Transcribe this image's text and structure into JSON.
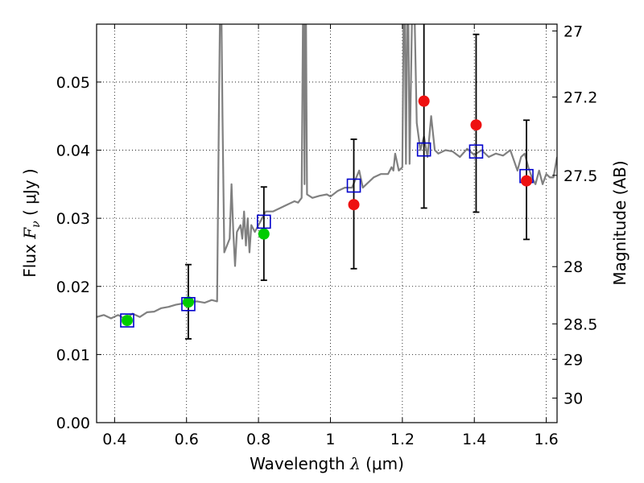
{
  "chart_data": {
    "type": "scatter",
    "title": "",
    "xlabel": {
      "prefix": "Wavelength  ",
      "symbol": "λ",
      "unit": " (μm)"
    },
    "ylabel": {
      "prefix": "Flux  ",
      "symbol": "F",
      "subscript": "ν",
      "unit": "  ( μJy )"
    },
    "y2label": "Magnitude (AB)",
    "xlim": [
      0.35,
      1.63
    ],
    "ylim": [
      0.0,
      0.0585
    ],
    "x_ticks": [
      0.4,
      0.6,
      0.8,
      1.0,
      1.2,
      1.4,
      1.6
    ],
    "x_tick_labels": [
      "0.4",
      "0.6",
      "0.8",
      "1",
      "1.2",
      "1.4",
      "1.6"
    ],
    "y_ticks": [
      0.0,
      0.01,
      0.02,
      0.03,
      0.04,
      0.05
    ],
    "y_tick_labels": [
      "0.00",
      "0.01",
      "0.02",
      "0.03",
      "0.04",
      "0.05"
    ],
    "y2_ticks": [
      {
        "flux": 0.0575,
        "label": "27"
      },
      {
        "flux": 0.0478,
        "label": "27.2"
      },
      {
        "flux": 0.0363,
        "label": "27.5"
      },
      {
        "flux": 0.0229,
        "label": "28"
      },
      {
        "flux": 0.0145,
        "label": "28.5"
      },
      {
        "flux": 0.0093,
        "label": "29"
      },
      {
        "flux": 0.0036,
        "label": "30"
      }
    ],
    "grid": true,
    "colors": {
      "spectrum": "#808080",
      "model_squares": "#0000cc",
      "green_points": "#00cc00",
      "red_points": "#ee1111",
      "errorbars": "#000000"
    },
    "series": [
      {
        "kind": "line",
        "x": [
          0.35,
          0.37,
          0.39,
          0.41,
          0.43,
          0.45,
          0.47,
          0.49,
          0.51,
          0.53,
          0.55,
          0.57,
          0.59,
          0.61,
          0.63,
          0.65,
          0.67,
          0.685,
          0.69,
          0.695,
          0.7,
          0.705,
          0.72,
          0.725,
          0.73,
          0.735,
          0.74,
          0.75,
          0.755,
          0.76,
          0.765,
          0.77,
          0.775,
          0.78,
          0.79,
          0.8,
          0.81,
          0.82,
          0.84,
          0.86,
          0.88,
          0.9,
          0.91,
          0.92,
          0.925,
          0.928,
          0.931,
          0.935,
          0.95,
          0.97,
          0.99,
          1.0,
          1.02,
          1.04,
          1.06,
          1.08,
          1.09,
          1.1,
          1.12,
          1.14,
          1.16,
          1.17,
          1.175,
          1.18,
          1.19,
          1.2,
          1.205,
          1.21,
          1.215,
          1.22,
          1.23,
          1.24,
          1.25,
          1.26,
          1.27,
          1.28,
          1.29,
          1.3,
          1.32,
          1.34,
          1.36,
          1.38,
          1.4,
          1.42,
          1.44,
          1.46,
          1.48,
          1.5,
          1.51,
          1.52,
          1.53,
          1.54,
          1.55,
          1.56,
          1.57,
          1.58,
          1.59,
          1.6,
          1.61,
          1.62,
          1.63
        ],
        "y": [
          0.0155,
          0.0158,
          0.0153,
          0.0158,
          0.0152,
          0.016,
          0.0155,
          0.0162,
          0.0163,
          0.0168,
          0.017,
          0.0173,
          0.0175,
          0.0177,
          0.0178,
          0.0176,
          0.018,
          0.0178,
          0.045,
          0.07,
          0.045,
          0.025,
          0.027,
          0.035,
          0.028,
          0.023,
          0.028,
          0.029,
          0.027,
          0.031,
          0.026,
          0.03,
          0.025,
          0.029,
          0.028,
          0.029,
          0.03,
          0.031,
          0.031,
          0.0315,
          0.032,
          0.0325,
          0.0323,
          0.033,
          0.07,
          0.035,
          0.07,
          0.0335,
          0.033,
          0.0333,
          0.0335,
          0.0332,
          0.034,
          0.0345,
          0.0345,
          0.037,
          0.0345,
          0.035,
          0.036,
          0.0365,
          0.0365,
          0.0375,
          0.037,
          0.0395,
          0.037,
          0.0375,
          0.07,
          0.038,
          0.07,
          0.038,
          0.07,
          0.044,
          0.04,
          0.042,
          0.039,
          0.045,
          0.04,
          0.0395,
          0.04,
          0.0398,
          0.039,
          0.0402,
          0.0393,
          0.04,
          0.039,
          0.0395,
          0.0392,
          0.04,
          0.0385,
          0.037,
          0.039,
          0.0395,
          0.0375,
          0.036,
          0.035,
          0.037,
          0.035,
          0.0365,
          0.036,
          0.036,
          0.039
        ]
      },
      {
        "kind": "errorbars",
        "points": [
          {
            "x": 0.605,
            "lo": 0.0123,
            "hi": 0.0232
          },
          {
            "x": 0.815,
            "lo": 0.0209,
            "hi": 0.0346
          },
          {
            "x": 1.065,
            "lo": 0.0226,
            "hi": 0.0416
          },
          {
            "x": 1.26,
            "lo": 0.0315,
            "hi": 0.059
          },
          {
            "x": 1.405,
            "lo": 0.0309,
            "hi": 0.057
          },
          {
            "x": 1.545,
            "lo": 0.0269,
            "hi": 0.0444
          }
        ]
      },
      {
        "kind": "model_squares",
        "x": [
          0.435,
          0.605,
          0.815,
          1.065,
          1.26,
          1.405,
          1.545
        ],
        "y": [
          0.015,
          0.0174,
          0.0295,
          0.0348,
          0.0401,
          0.0398,
          0.0362
        ]
      },
      {
        "kind": "green_points",
        "x": [
          0.435,
          0.605,
          0.815
        ],
        "y": [
          0.015,
          0.0177,
          0.0277
        ]
      },
      {
        "kind": "red_points",
        "x": [
          1.065,
          1.26,
          1.405,
          1.545
        ],
        "y": [
          0.032,
          0.0472,
          0.0437,
          0.0355
        ]
      }
    ]
  }
}
